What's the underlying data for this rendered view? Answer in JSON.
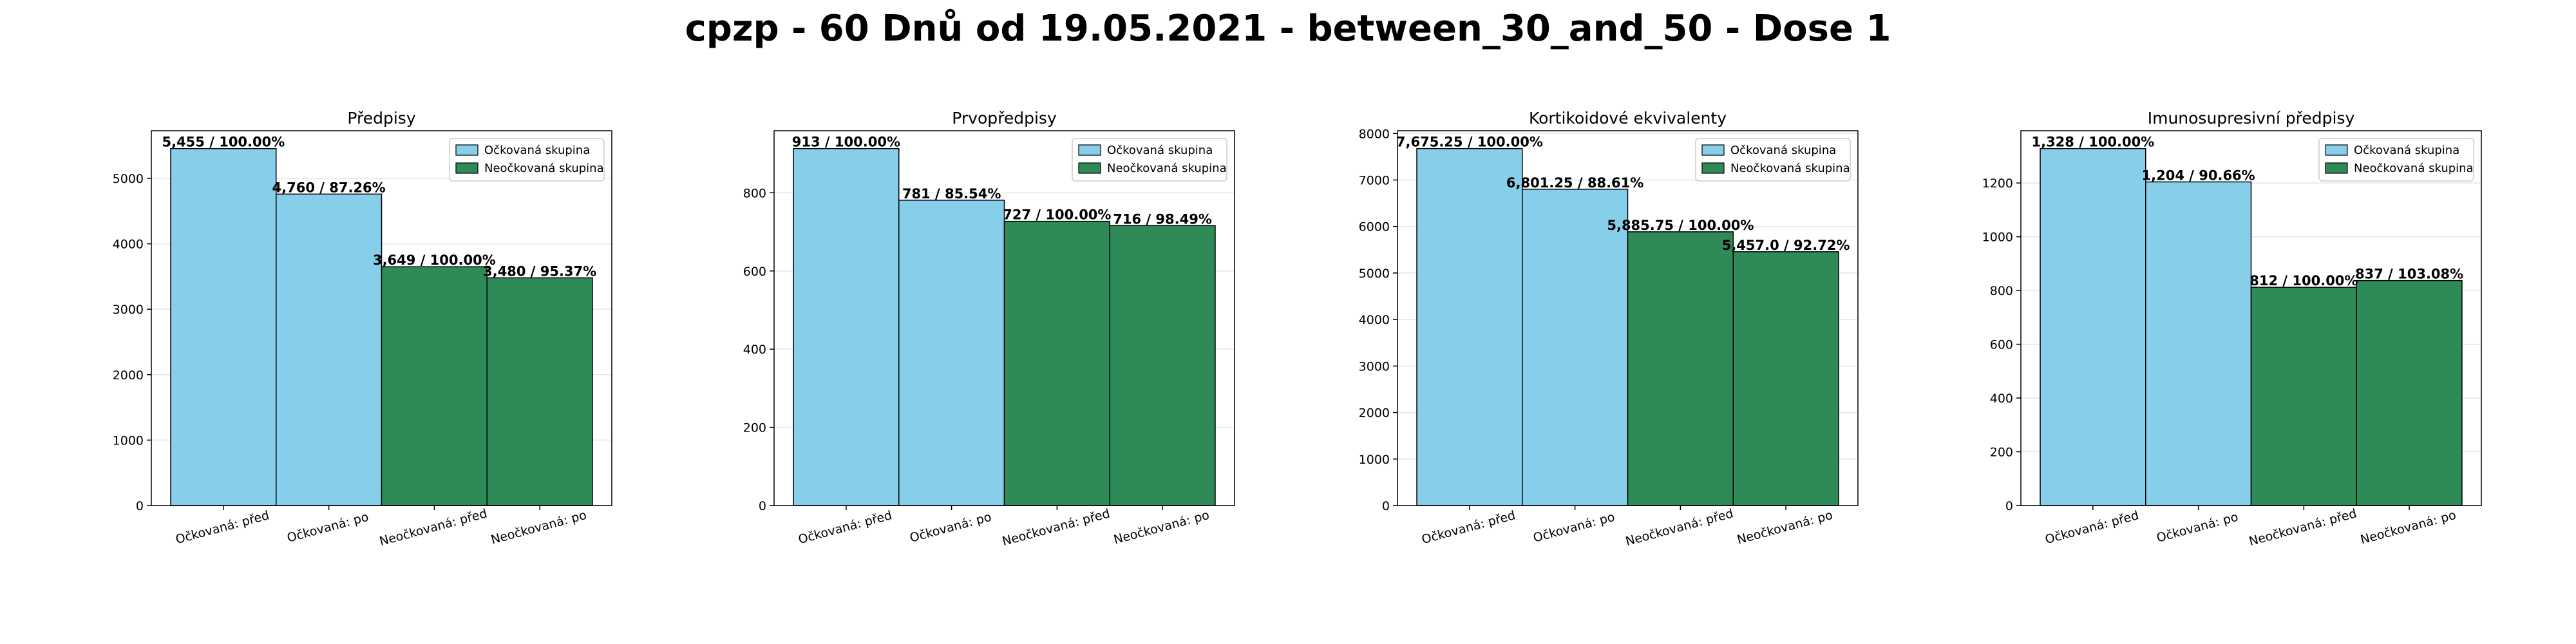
{
  "suptitle": "cpzp - 60 Dnů od 19.05.2021 - between_30_and_50 - Dose 1",
  "colors": {
    "vaccinated": "#87ceeb",
    "unvaccinated": "#2e8b57",
    "grid": "#e6e6e6"
  },
  "legend": [
    "Očkovaná skupina",
    "Neočkovaná skupina"
  ],
  "chart_data": [
    {
      "type": "bar",
      "title": "Předpisy",
      "categories": [
        "Očkovaná: před",
        "Očkovaná: po",
        "Neočkovaná: před",
        "Neočkovaná: po"
      ],
      "values": [
        5455,
        4760,
        3649,
        3480
      ],
      "labels": [
        "5,455 / 100.00%",
        "4,760 / 87.26%",
        "3,649 / 100.00%",
        "3,480 / 95.37%"
      ],
      "groups": [
        "vaccinated",
        "vaccinated",
        "unvaccinated",
        "unvaccinated"
      ],
      "ylim": [
        0,
        5728
      ],
      "yticks": [
        0,
        1000,
        2000,
        3000,
        4000,
        5000
      ],
      "legend_position": "top-right",
      "grid": true
    },
    {
      "type": "bar",
      "title": "Prvopředpisy",
      "categories": [
        "Očkovaná: před",
        "Očkovaná: po",
        "Neočkovaná: před",
        "Neočkovaná: po"
      ],
      "values": [
        913,
        781,
        727,
        716
      ],
      "labels": [
        "913 / 100.00%",
        "781 / 85.54%",
        "727 / 100.00%",
        "716 / 98.49%"
      ],
      "groups": [
        "vaccinated",
        "vaccinated",
        "unvaccinated",
        "unvaccinated"
      ],
      "ylim": [
        0,
        958.7
      ],
      "yticks": [
        0,
        200,
        400,
        600,
        800
      ],
      "legend_position": "top-right",
      "grid": true
    },
    {
      "type": "bar",
      "title": "Kortikoidové ekvivalenty",
      "categories": [
        "Očkovaná: před",
        "Očkovaná: po",
        "Neočkovaná: před",
        "Neočkovaná: po"
      ],
      "values": [
        7675.25,
        6801.25,
        5885.75,
        5457.0
      ],
      "labels": [
        "7,675.25 / 100.00%",
        "6,801.25 / 88.61%",
        "5,885.75 / 100.00%",
        "5,457.0 / 92.72%"
      ],
      "groups": [
        "vaccinated",
        "vaccinated",
        "unvaccinated",
        "unvaccinated"
      ],
      "ylim": [
        0,
        8059
      ],
      "yticks": [
        0,
        1000,
        2000,
        3000,
        4000,
        5000,
        6000,
        7000,
        8000
      ],
      "legend_position": "top-right",
      "grid": true
    },
    {
      "type": "bar",
      "title": "Imunosupresivní předpisy",
      "categories": [
        "Očkovaná: před",
        "Očkovaná: po",
        "Neočkovaná: před",
        "Neočkovaná: po"
      ],
      "values": [
        1328,
        1204,
        812,
        837
      ],
      "labels": [
        "1,328 / 100.00%",
        "1,204 / 90.66%",
        "812 / 100.00%",
        "837 / 103.08%"
      ],
      "groups": [
        "vaccinated",
        "vaccinated",
        "unvaccinated",
        "unvaccinated"
      ],
      "ylim": [
        0,
        1394.4
      ],
      "yticks": [
        0,
        200,
        400,
        600,
        800,
        1000,
        1200
      ],
      "legend_position": "top-right",
      "grid": true
    }
  ]
}
